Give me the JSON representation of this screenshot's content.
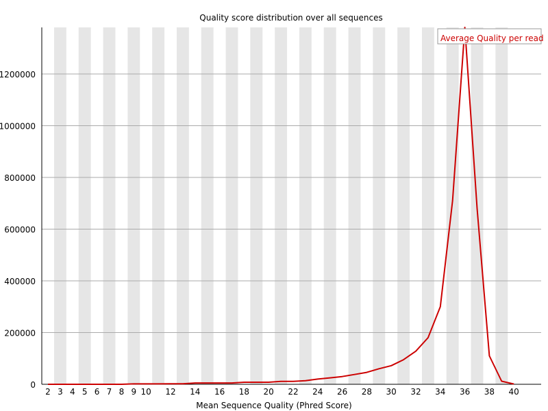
{
  "chart_data": {
    "type": "line",
    "title": "Quality score distribution over all sequences",
    "xlabel": "Mean Sequence Quality (Phred Score)",
    "ylabel": "",
    "x": [
      2,
      3,
      4,
      5,
      6,
      7,
      8,
      9,
      10,
      11,
      12,
      13,
      14,
      15,
      16,
      17,
      18,
      19,
      20,
      21,
      22,
      23,
      24,
      25,
      26,
      27,
      28,
      29,
      30,
      31,
      32,
      33,
      34,
      35,
      36,
      37,
      38,
      39,
      40
    ],
    "x_tick_labels": [
      "2",
      "3",
      "4",
      "5",
      "6",
      "7",
      "8",
      "9",
      "10",
      "12",
      "14",
      "16",
      "18",
      "20",
      "22",
      "24",
      "26",
      "28",
      "30",
      "32",
      "34",
      "36",
      "38",
      "40"
    ],
    "y_ticks": [
      0,
      200000,
      400000,
      600000,
      800000,
      1000000,
      1200000
    ],
    "y_tick_labels": [
      "0",
      "200000",
      "400000",
      "600000",
      "800000",
      "1000000",
      "1200000"
    ],
    "ylim": [
      0,
      1380000
    ],
    "xlim": [
      2,
      40
    ],
    "series": [
      {
        "name": "Average Quality per read",
        "color": "#cc0000",
        "values": [
          0,
          0,
          0,
          0,
          0,
          0,
          0,
          1500,
          1500,
          1500,
          2000,
          2000,
          5000,
          5000,
          5000,
          5000,
          8000,
          8000,
          8000,
          11000,
          11000,
          14000,
          20000,
          25000,
          30000,
          38000,
          46000,
          60000,
          72000,
          95000,
          128000,
          180000,
          300000,
          710000,
          1390000,
          680000,
          110000,
          12000,
          1000
        ]
      }
    ],
    "legend": {
      "position": "top-right"
    },
    "grid": {
      "horizontal": true,
      "alternating_column_bands": true
    },
    "colors": {
      "band": "#e6e6e6",
      "grid": "#aaaaaa",
      "line": "#cc0000"
    }
  }
}
